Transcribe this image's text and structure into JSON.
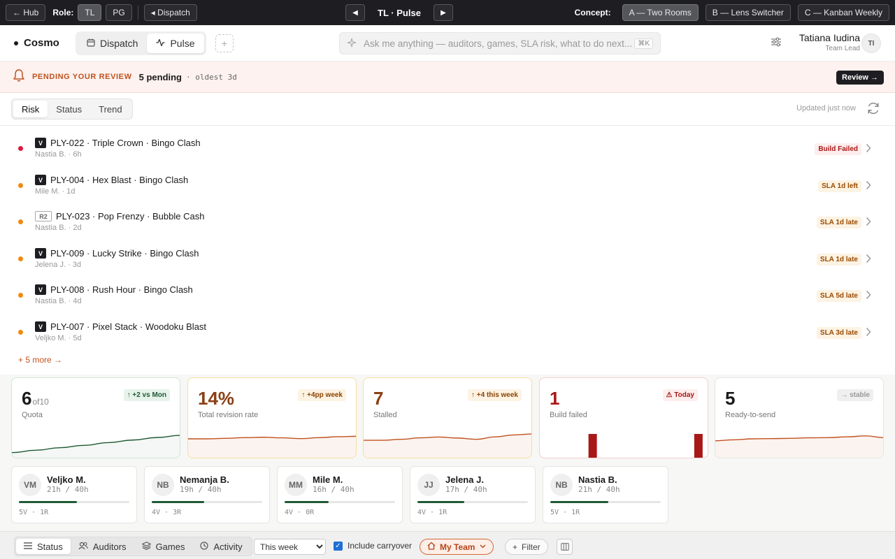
{
  "topbar": {
    "hub": "← Hub",
    "role_label": "Role:",
    "roles": [
      "TL",
      "PG"
    ],
    "active_role": "TL",
    "dispatch_link": "◂ Dispatch",
    "title": "TL · Pulse",
    "concept_label": "Concept:",
    "concepts": [
      "A — Two Rooms",
      "B — Lens Switcher",
      "C — Kanban Weekly"
    ],
    "active_concept": "A — Two Rooms"
  },
  "header": {
    "brand": "Cosmo",
    "rooms": [
      "Dispatch",
      "Pulse"
    ],
    "active_room": "Pulse",
    "ask_placeholder": "Ask me anything — auditors, games, SLA risk, what to do next...",
    "ask_shortcut": "⌘K",
    "user_name": "Tatiana Iudina",
    "user_role": "Team Lead",
    "user_initials": "TI"
  },
  "banner": {
    "label": "PENDING YOUR REVIEW",
    "count": "5 pending",
    "oldest": "· oldest 3d",
    "button": "Review →"
  },
  "lenses": {
    "tabs": [
      "Risk",
      "Status",
      "Trend"
    ],
    "active": "Risk",
    "updated": "Updated just now"
  },
  "risk_rows": [
    {
      "badge": "V",
      "title": "PLY-022 · Triple Crown · Bingo Clash",
      "sub": "Nastia B. · 6h",
      "status": "Build Failed",
      "severity": "red"
    },
    {
      "badge": "V",
      "title": "PLY-004 · Hex Blast · Bingo Clash",
      "sub": "Mile M. · 1d",
      "status": "SLA 1d left",
      "severity": "amber"
    },
    {
      "badge": "R2",
      "title": "PLY-023 · Pop Frenzy · Bubble Cash",
      "sub": "Nastia B. · 2d",
      "status": "SLA 1d late",
      "severity": "amber"
    },
    {
      "badge": "V",
      "title": "PLY-009 · Lucky Strike · Bingo Clash",
      "sub": "Jelena J. · 3d",
      "status": "SLA 1d late",
      "severity": "amber"
    },
    {
      "badge": "V",
      "title": "PLY-008 · Rush Hour · Bingo Clash",
      "sub": "Nastia B. · 4d",
      "status": "SLA 5d late",
      "severity": "amber"
    },
    {
      "badge": "V",
      "title": "PLY-007 · Pixel Stack · Woodoku Blast",
      "sub": "Veljko M. · 5d",
      "status": "SLA 3d late",
      "severity": "amber"
    }
  ],
  "more_link": "+ 5 more →",
  "kpis": [
    {
      "value": "6",
      "suffix": "of10",
      "label": "Quota",
      "delta": "↑ +2 vs Mon",
      "tone": "quota",
      "delta_tone": "green",
      "value_color": "#1a1a1a",
      "spark": [
        0.05,
        0.18,
        0.32,
        0.45,
        0.6,
        0.74,
        0.88,
        1.0
      ],
      "spark_kind": "line",
      "spark_color": "#1f5a34"
    },
    {
      "value": "14%",
      "suffix": "",
      "label": "Total revision rate",
      "delta": "↑ +4pp week",
      "tone": "amber",
      "delta_tone": "amber",
      "value_color": "#8a4015",
      "spark": [
        0.5,
        0.5,
        0.55,
        0.62,
        0.66,
        0.6,
        0.52,
        0.62,
        0.72,
        0.76
      ],
      "spark_kind": "area",
      "spark_color": "#c0521f"
    },
    {
      "value": "7",
      "suffix": "",
      "label": "Stalled",
      "delta": "↑ +4 this week",
      "tone": "amber",
      "delta_tone": "amber",
      "value_color": "#8a4015",
      "spark": [
        0.35,
        0.35,
        0.45,
        0.6,
        0.68,
        0.58,
        0.45,
        0.7,
        0.9,
        1.0
      ],
      "spark_kind": "area",
      "spark_color": "#c0521f"
    },
    {
      "value": "1",
      "suffix": "",
      "label": "Build failed",
      "delta": "⚠ Today",
      "tone": "red",
      "delta_tone": "red",
      "value_color": "#a81818",
      "spark": [
        0,
        0,
        1,
        0,
        0,
        0,
        0,
        1
      ],
      "spark_kind": "bars",
      "spark_color": "#a81818"
    },
    {
      "value": "5",
      "suffix": "",
      "label": "Ready-to-send",
      "delta": "→ stable",
      "tone": "",
      "delta_tone": "gray",
      "value_color": "#1a1a1a",
      "spark": [
        0.3,
        0.4,
        0.5,
        0.52,
        0.55,
        0.6,
        0.62,
        0.7,
        0.8,
        0.62
      ],
      "spark_kind": "area",
      "spark_color": "#c0521f"
    }
  ],
  "auditors": [
    {
      "initials": "VM",
      "name": "Veljko M.",
      "hours": "21h / 40h",
      "load": 0.525,
      "vr": "5V · 1R"
    },
    {
      "initials": "NB",
      "name": "Nemanja B.",
      "hours": "19h / 40h",
      "load": 0.475,
      "vr": "4V · 3R"
    },
    {
      "initials": "MM",
      "name": "Mile M.",
      "hours": "16h / 40h",
      "load": 0.4,
      "vr": "4V · 0R"
    },
    {
      "initials": "JJ",
      "name": "Jelena J.",
      "hours": "17h / 40h",
      "load": 0.425,
      "vr": "4V · 1R"
    },
    {
      "initials": "NB",
      "name": "Nastia B.",
      "hours": "21h / 40h",
      "load": 0.525,
      "vr": "5V · 1R"
    }
  ],
  "bottombar": {
    "tabs": [
      "Status",
      "Auditors",
      "Games",
      "Activity"
    ],
    "active": "Status",
    "week_value": "This week",
    "carryover_label": "Include carryover",
    "carryover_checked": true,
    "team_chip": "My Team",
    "filter": "Filter"
  },
  "colors": {
    "accent": "#c0521f",
    "dark": "#1e1e22",
    "green": "#1f5a34",
    "red": "#a81818",
    "red_dot": "#e0193b",
    "amber_dot": "#f08a12"
  }
}
